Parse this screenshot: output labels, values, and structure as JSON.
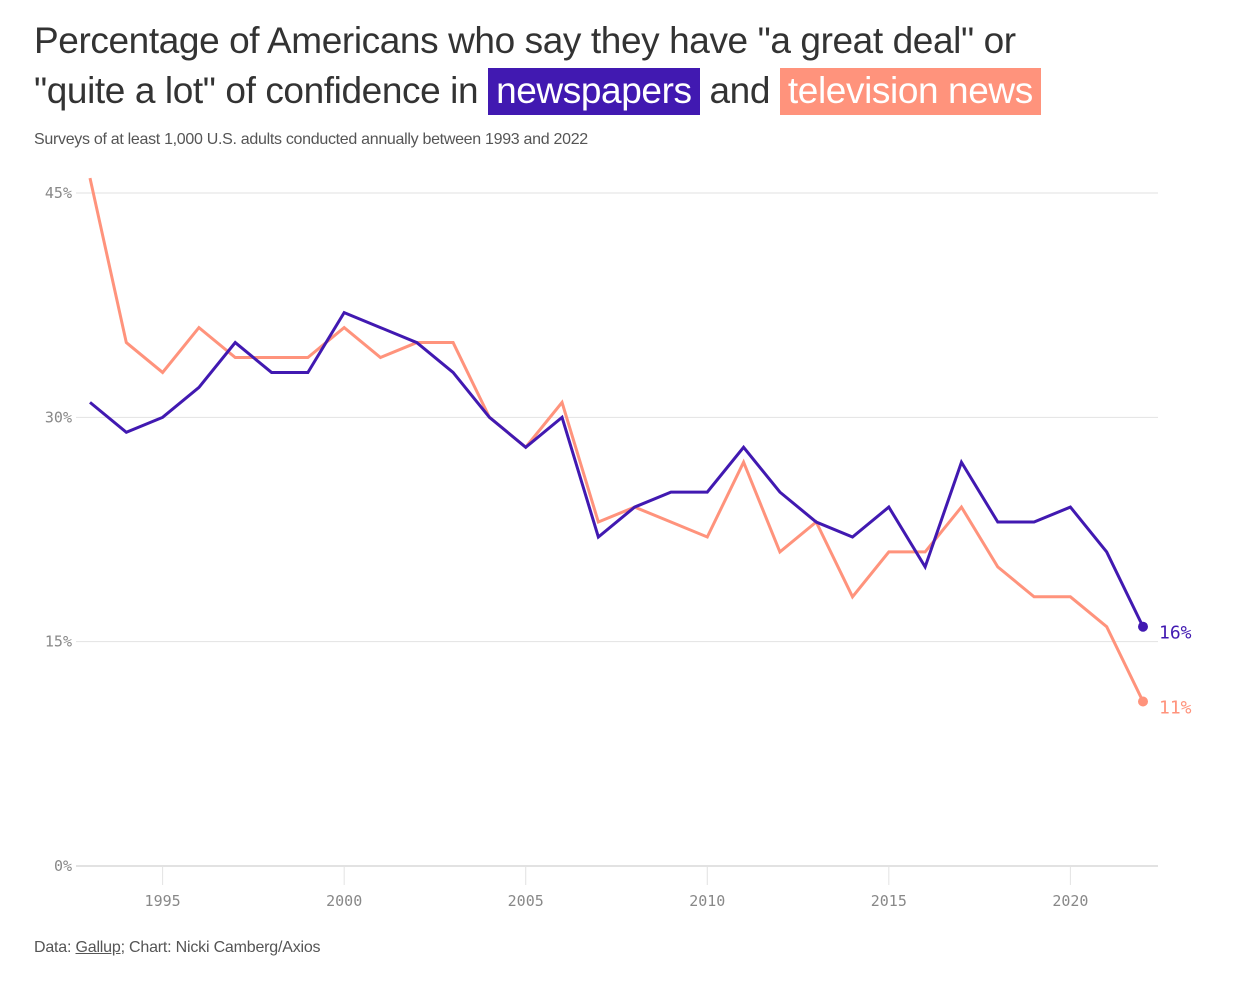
{
  "title": {
    "line1": "Percentage of Americans who say they have \"a great deal\" or",
    "line2_prefix": "\"quite a lot\" of confidence in",
    "highlight_newspapers": "newspapers",
    "connector": "and",
    "highlight_tv": "television news"
  },
  "subtitle": "Surveys of at least 1,000 U.S. adults conducted annually between 1993 and 2022",
  "footer": {
    "data_prefix": "Data: ",
    "source_link": "Gallup",
    "chart_credit": "; Chart: Nicki Camberg/Axios"
  },
  "colors": {
    "newspapers": "#4119b1",
    "television": "#ff937c",
    "grid": "#e2e2e2",
    "axis_text": "#888888"
  },
  "chart_data": {
    "type": "line",
    "title": "Percentage of Americans who say they have \"a great deal\" or \"quite a lot\" of confidence in newspapers and television news",
    "subtitle": "Surveys of at least 1,000 U.S. adults conducted annually between 1993 and 2022",
    "xlabel": "",
    "ylabel": "",
    "x": [
      1993,
      1994,
      1995,
      1996,
      1997,
      1998,
      1999,
      2000,
      2001,
      2002,
      2003,
      2004,
      2005,
      2006,
      2007,
      2008,
      2009,
      2010,
      2011,
      2012,
      2013,
      2014,
      2015,
      2016,
      2017,
      2018,
      2019,
      2020,
      2021,
      2022
    ],
    "xlim": [
      1993,
      2022
    ],
    "ylim": [
      0,
      45
    ],
    "x_ticks": [
      1995,
      2000,
      2005,
      2010,
      2015,
      2020
    ],
    "y_ticks": [
      0,
      15,
      30,
      45
    ],
    "y_tick_labels": [
      "0%",
      "15%",
      "30%",
      "45%"
    ],
    "grid": "horizontal",
    "legend": "in-title",
    "series": [
      {
        "name": "newspapers",
        "color": "#4119b1",
        "values": [
          31,
          29,
          30,
          32,
          35,
          33,
          33,
          37,
          36,
          35,
          33,
          30,
          28,
          30,
          22,
          24,
          25,
          25,
          28,
          25,
          23,
          22,
          24,
          20,
          27,
          23,
          23,
          24,
          21,
          16
        ],
        "end_label": "16%"
      },
      {
        "name": "television news",
        "color": "#ff937c",
        "values": [
          46,
          35,
          33,
          36,
          34,
          34,
          34,
          36,
          34,
          35,
          35,
          30,
          28,
          31,
          23,
          24,
          23,
          22,
          27,
          21,
          23,
          18,
          21,
          21,
          24,
          20,
          18,
          18,
          16,
          11
        ],
        "end_label": "11%"
      }
    ],
    "source": "Data: Gallup; Chart: Nicki Camberg/Axios"
  }
}
